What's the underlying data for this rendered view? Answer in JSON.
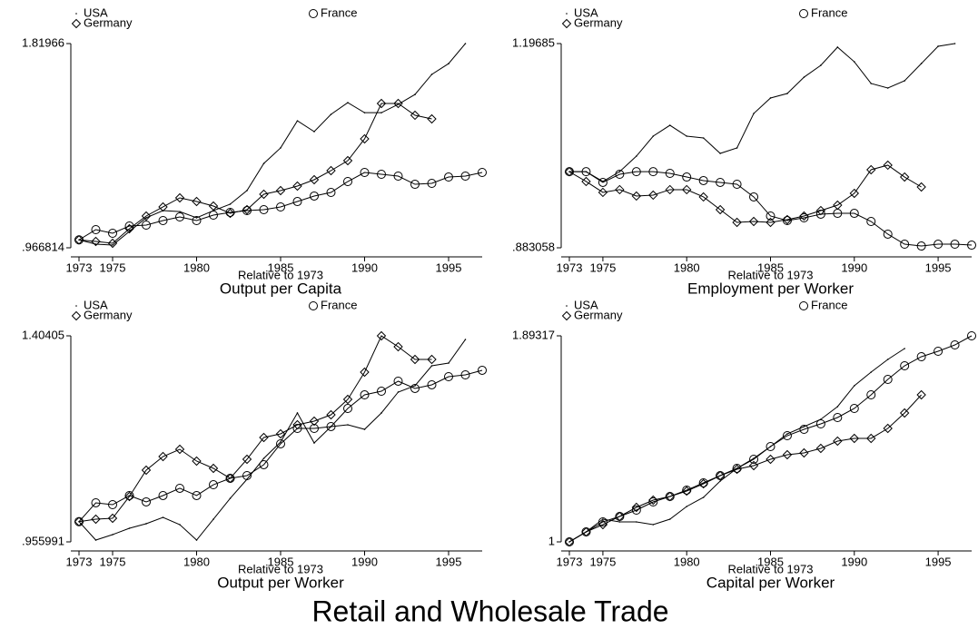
{
  "title": "Retail and Wholesale Trade",
  "chart_data": [
    {
      "type": "line",
      "title": "Output per Capita",
      "xlabel": "Relative to 1973",
      "x": [
        1973,
        1974,
        1975,
        1976,
        1977,
        1978,
        1979,
        1980,
        1981,
        1982,
        1983,
        1984,
        1985,
        1986,
        1987,
        1988,
        1989,
        1990,
        1991,
        1992,
        1993,
        1994,
        1995,
        1996,
        1997
      ],
      "xlim": [
        1973,
        1997
      ],
      "xticks": [
        1973,
        1975,
        1980,
        1985,
        1990,
        1995
      ],
      "ylim": [
        0.966814,
        1.81966
      ],
      "yticks": [
        {
          "value": 0.966814,
          "label": ".966814"
        },
        1.81966
      ],
      "series": [
        {
          "name": "USA",
          "color": "#000000",
          "marker": "dot",
          "values": [
            1.0,
            0.982,
            0.9782,
            1.035,
            1.092,
            1.122,
            1.118,
            1.092,
            1.122,
            1.149,
            1.206,
            1.319,
            1.384,
            1.497,
            1.452,
            1.524,
            1.573,
            1.531,
            1.531,
            1.566,
            1.607,
            1.691,
            1.736,
            1.81966,
            null
          ]
        },
        {
          "name": "France",
          "color": "#000000",
          "marker": "circle",
          "values": [
            1.0,
            1.0426,
            1.0275,
            1.0578,
            1.0616,
            1.0805,
            1.0957,
            1.0805,
            1.1033,
            1.1146,
            1.1222,
            1.126,
            1.1374,
            1.16,
            1.183,
            1.198,
            1.2435,
            1.2814,
            1.2738,
            1.2662,
            1.232,
            1.2359,
            1.2624,
            1.2662,
            1.2814
          ]
        },
        {
          "name": "Germany",
          "color": "#000000",
          "marker": "diamond",
          "values": [
            1.0,
            0.9933,
            0.9858,
            1.0464,
            1.0995,
            1.1374,
            1.1753,
            1.1601,
            1.1412,
            1.1108,
            1.126,
            1.1904,
            1.2056,
            1.2246,
            1.2511,
            1.289,
            1.3307,
            1.4217,
            1.5695,
            1.5695,
            1.5203,
            1.5051,
            null,
            null,
            null
          ]
        }
      ]
    },
    {
      "type": "line",
      "title": "Employment per Worker",
      "xlabel": "Relative to 1973",
      "x": [
        1973,
        1974,
        1975,
        1976,
        1977,
        1978,
        1979,
        1980,
        1981,
        1982,
        1983,
        1984,
        1985,
        1986,
        1987,
        1988,
        1989,
        1990,
        1991,
        1992,
        1993,
        1994,
        1995,
        1996,
        1997
      ],
      "xlim": [
        1973,
        1997
      ],
      "xticks": [
        1973,
        1975,
        1980,
        1985,
        1990,
        1995
      ],
      "ylim": [
        0.883058,
        1.19685
      ],
      "yticks": [
        {
          "value": 0.883058,
          "label": ".883058"
        },
        1.19685
      ],
      "series": [
        {
          "name": "USA",
          "color": "#000000",
          "marker": "dot",
          "values": [
            1.0,
            1.0,
            0.9849,
            1.0,
            1.0239,
            1.0546,
            1.0713,
            1.0546,
            1.0518,
            1.0281,
            1.0365,
            1.0894,
            1.1132,
            1.1201,
            1.1452,
            1.1634,
            1.1913,
            1.1689,
            1.1355,
            1.1285,
            1.1397,
            1.1662,
            1.1927,
            1.19685,
            null
          ]
        },
        {
          "name": "France",
          "color": "#000000",
          "marker": "circle",
          "values": [
            1.0,
            1.0,
            0.9835,
            0.996,
            1.0,
            1.0,
            0.9974,
            0.9918,
            0.9863,
            0.9835,
            0.9807,
            0.9612,
            0.9319,
            0.9249,
            0.9291,
            0.9347,
            0.936,
            0.936,
            0.9235,
            0.904,
            0.8886,
            0.8858,
            0.8886,
            0.8886,
            0.8872
          ]
        },
        {
          "name": "Germany",
          "color": "#000000",
          "marker": "diamond",
          "values": [
            1.0,
            0.9849,
            0.9682,
            0.9724,
            0.9626,
            0.964,
            0.9724,
            0.9724,
            0.9612,
            0.9416,
            0.9221,
            0.9235,
            0.9221,
            0.9263,
            0.9319,
            0.9402,
            0.9486,
            0.9667,
            1.003,
            1.01,
            0.9918,
            0.9765,
            null,
            null,
            null
          ]
        }
      ]
    },
    {
      "type": "line",
      "title": "Output per Worker",
      "xlabel": "Relative to 1973",
      "x": [
        1973,
        1974,
        1975,
        1976,
        1977,
        1978,
        1979,
        1980,
        1981,
        1982,
        1983,
        1984,
        1985,
        1986,
        1987,
        1988,
        1989,
        1990,
        1991,
        1992,
        1993,
        1994,
        1995,
        1996,
        1997
      ],
      "xlim": [
        1973,
        1997
      ],
      "xticks": [
        1973,
        1975,
        1980,
        1985,
        1990,
        1995
      ],
      "ylim": [
        0.955991,
        1.40405
      ],
      "yticks": [
        {
          "value": 0.955991,
          "label": ".955991"
        },
        1.40405
      ],
      "series": [
        {
          "name": "USA",
          "color": "#000000",
          "marker": "dot",
          "values": [
            1.0,
            0.9599,
            0.9718,
            0.9856,
            0.9955,
            1.0093,
            0.9935,
            0.9599,
            1.0053,
            1.0507,
            1.0922,
            1.1376,
            1.1731,
            1.2363,
            1.1711,
            1.2067,
            1.2106,
            1.2007,
            1.2363,
            1.2817,
            1.2955,
            1.3389,
            1.3448,
            1.3961,
            null
          ]
        },
        {
          "name": "France",
          "color": "#000000",
          "marker": "circle",
          "values": [
            1.0,
            1.0409,
            1.0369,
            1.0567,
            1.0429,
            1.0567,
            1.0725,
            1.0567,
            1.0803,
            1.0942,
            1.1001,
            1.1238,
            1.1692,
            1.2027,
            1.2027,
            1.2067,
            1.2461,
            1.2757,
            1.2836,
            1.3054,
            1.2896,
            1.2975,
            1.3152,
            1.3192,
            1.3291
          ]
        },
        {
          "name": "Germany",
          "color": "#000000",
          "marker": "diamond",
          "values": [
            1.0,
            1.0053,
            1.0073,
            1.0547,
            1.1119,
            1.1415,
            1.1573,
            1.1317,
            1.1159,
            1.0942,
            1.1356,
            1.183,
            1.1909,
            1.2106,
            1.2185,
            1.2323,
            1.2659,
            1.3251,
            1.40405,
            1.3803,
            1.3527,
            1.3527,
            null,
            null,
            null
          ]
        }
      ]
    },
    {
      "type": "line",
      "title": "Capital per Worker",
      "xlabel": "Relative to 1973",
      "x": [
        1973,
        1974,
        1975,
        1976,
        1977,
        1978,
        1979,
        1980,
        1981,
        1982,
        1983,
        1984,
        1985,
        1986,
        1987,
        1988,
        1989,
        1990,
        1991,
        1992,
        1993,
        1994,
        1995,
        1996,
        1997
      ],
      "xlim": [
        1973,
        1997
      ],
      "xticks": [
        1973,
        1975,
        1980,
        1985,
        1990,
        1995
      ],
      "ylim": [
        1,
        1.89317
      ],
      "yticks": [
        1,
        1.89317
      ],
      "series": [
        {
          "name": "USA",
          "color": "#000000",
          "marker": "dot",
          "values": [
            1.0,
            1.0433,
            1.0984,
            1.0866,
            1.0866,
            1.0748,
            1.0984,
            1.1535,
            1.1928,
            1.2636,
            1.3187,
            1.362,
            1.4131,
            1.4682,
            1.4997,
            1.5312,
            1.5863,
            1.6768,
            1.7358,
            1.7909,
            1.8381,
            null,
            null,
            null,
            null
          ]
        },
        {
          "name": "France",
          "color": "#000000",
          "marker": "circle",
          "values": [
            1.0,
            1.0433,
            1.0866,
            1.1102,
            1.1377,
            1.1731,
            1.1967,
            1.2243,
            1.2557,
            1.2872,
            1.3187,
            1.3581,
            1.4131,
            1.4603,
            1.4879,
            1.5115,
            1.5391,
            1.5784,
            1.6374,
            1.7043,
            1.7633,
            1.8027,
            1.8263,
            1.8538,
            1.89317
          ]
        },
        {
          "name": "Germany",
          "color": "#000000",
          "marker": "diamond",
          "values": [
            1.0,
            1.0433,
            1.0748,
            1.1102,
            1.1495,
            1.181,
            1.1967,
            1.2203,
            1.2518,
            1.2872,
            1.3148,
            1.3305,
            1.3581,
            1.3778,
            1.3856,
            1.4053,
            1.4368,
            1.4486,
            1.4486,
            1.4918,
            1.5588,
            1.6374,
            null,
            null,
            null
          ]
        }
      ]
    }
  ]
}
